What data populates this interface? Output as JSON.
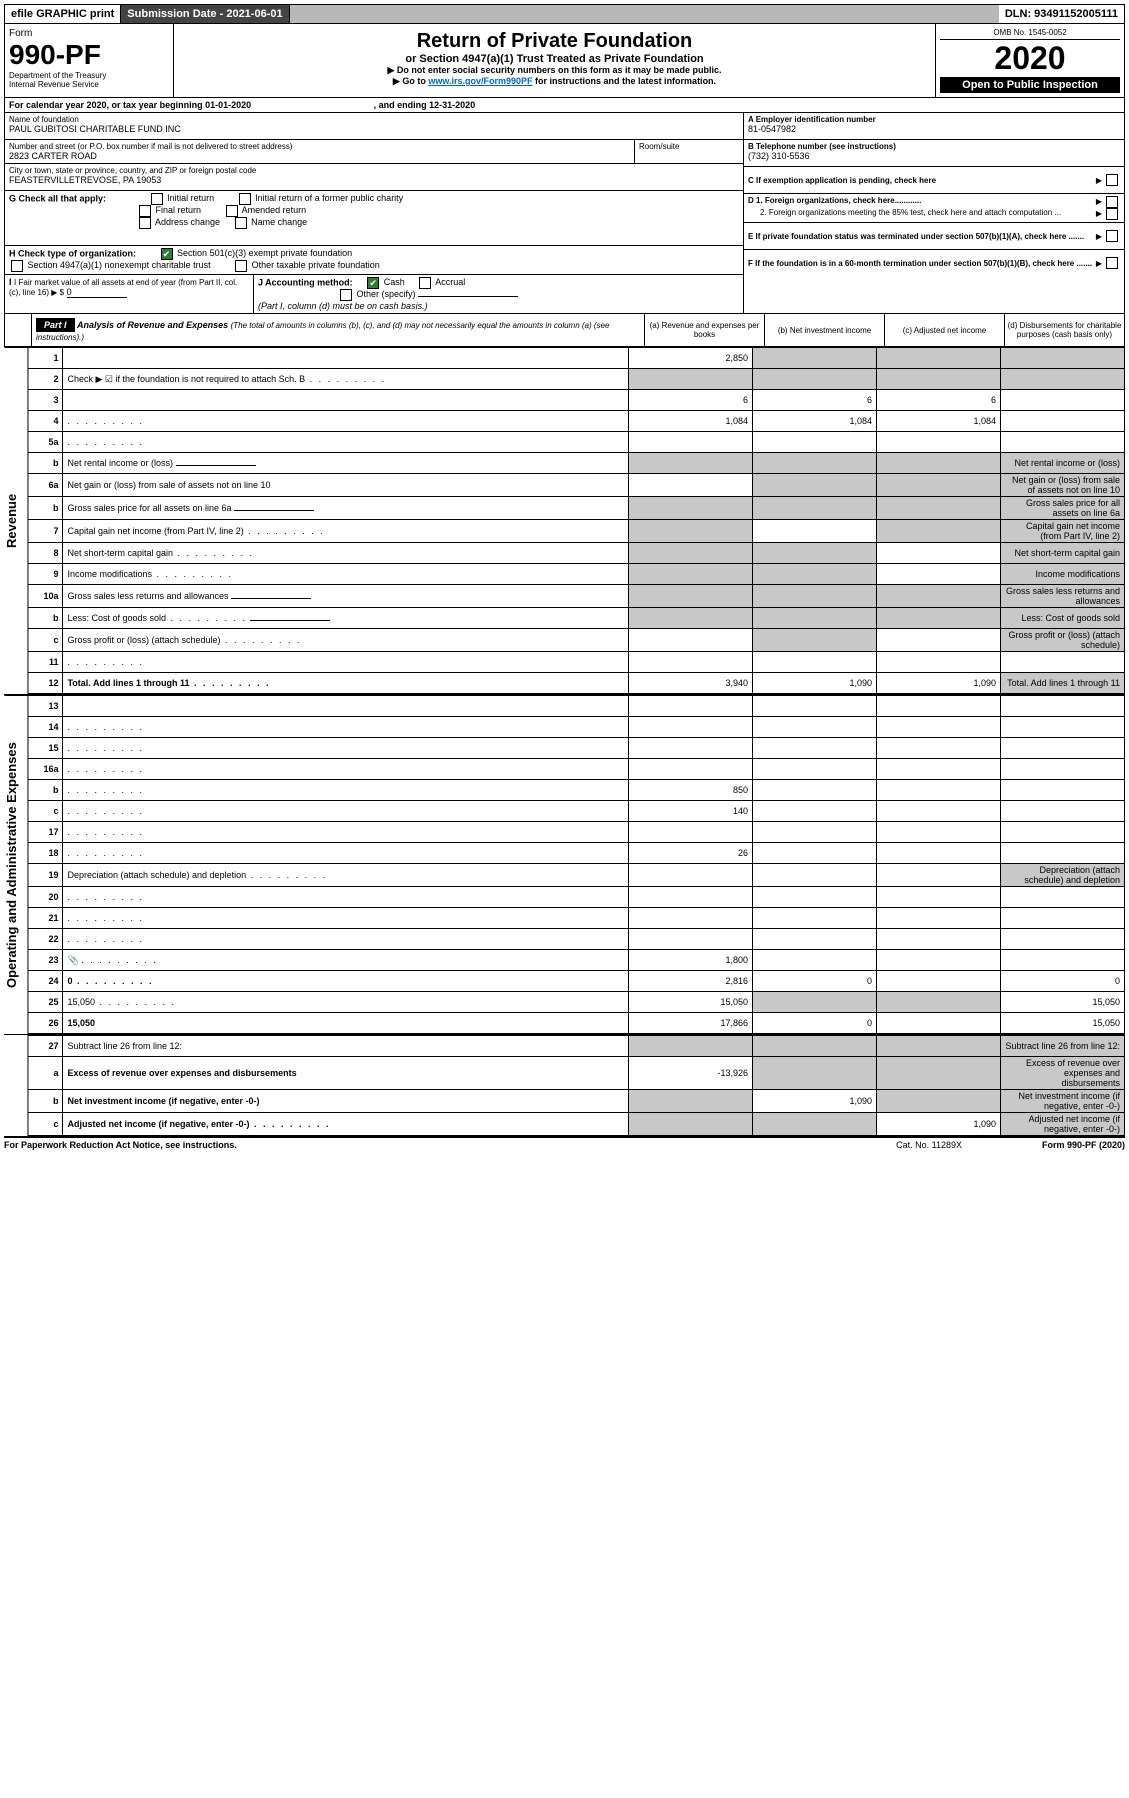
{
  "topbar": {
    "efile": "efile GRAPHIC print",
    "submission_label": "Submission Date - ",
    "submission_date": "2021-06-01",
    "dln_label": "DLN: ",
    "dln": "93491152005111"
  },
  "header": {
    "form_label": "Form",
    "form_no": "990-PF",
    "dept1": "Department of the Treasury",
    "dept2": "Internal Revenue Service",
    "title": "Return of Private Foundation",
    "subtitle": "or Section 4947(a)(1) Trust Treated as Private Foundation",
    "instr1": "▶ Do not enter social security numbers on this form as it may be made public.",
    "instr2_pre": "▶ Go to ",
    "instr2_link": "www.irs.gov/Form990PF",
    "instr2_post": " for instructions and the latest information.",
    "omb": "OMB No. 1545-0052",
    "year": "2020",
    "open": "Open to Public Inspection"
  },
  "calendar": {
    "text_pre": "For calendar year 2020, or tax year beginning ",
    "begin": "01-01-2020",
    "text_mid": " , and ending ",
    "end": "12-31-2020"
  },
  "info": {
    "name_label": "Name of foundation",
    "name": "PAUL GUBITOSI CHARITABLE FUND INC",
    "addr_label": "Number and street (or P.O. box number if mail is not delivered to street address)",
    "addr": "2823 CARTER ROAD",
    "room_label": "Room/suite",
    "city_label": "City or town, state or province, country, and ZIP or foreign postal code",
    "city": "FEASTERVILLETREVOSE, PA  19053",
    "A_label": "A Employer identification number",
    "A_val": "81-0547982",
    "B_label": "B Telephone number (see instructions)",
    "B_val": "(732) 310-5536",
    "C_label": "C If exemption application is pending, check here",
    "D1_label": "D 1. Foreign organizations, check here............",
    "D2_label": "2. Foreign organizations meeting the 85% test, check here and attach computation ...",
    "E_label": "E  If private foundation status was terminated under section 507(b)(1)(A), check here .......",
    "F_label": "F  If the foundation is in a 60-month termination under section 507(b)(1)(B), check here .......",
    "G_label": "G Check all that apply:",
    "G_opts": [
      "Initial return",
      "Initial return of a former public charity",
      "Final return",
      "Amended return",
      "Address change",
      "Name change"
    ],
    "H_label": "H Check type of organization:",
    "H_opt1": "Section 501(c)(3) exempt private foundation",
    "H_opt2": "Section 4947(a)(1) nonexempt charitable trust",
    "H_opt3": "Other taxable private foundation",
    "I_label": "I Fair market value of all assets at end of year (from Part II, col. (c), line 16) ▶ $",
    "I_val": "0",
    "J_label": "J Accounting method:",
    "J_opt1": "Cash",
    "J_opt2": "Accrual",
    "J_other": "Other (specify)",
    "J_note": "(Part I, column (d) must be on cash basis.)"
  },
  "part1": {
    "label": "Part I",
    "title": "Analysis of Revenue and Expenses",
    "title_note": "(The total of amounts in columns (b), (c), and (d) may not necessarily equal the amounts in column (a) (see instructions).)",
    "col_a": "(a)   Revenue and expenses per books",
    "col_b": "(b)   Net investment income",
    "col_c": "(c)   Adjusted net income",
    "col_d": "(d)   Disbursements for charitable purposes (cash basis only)"
  },
  "side_labels": {
    "revenue": "Revenue",
    "expenses": "Operating and Administrative Expenses"
  },
  "rows": [
    {
      "n": "1",
      "d": "",
      "a": "2,850",
      "b": "",
      "c": "",
      "shade_bcd": true
    },
    {
      "n": "2",
      "d": "Check ▶ ☑ if the foundation is not required to attach Sch. B",
      "dots": true,
      "no_vals": true
    },
    {
      "n": "3",
      "d": "",
      "a": "6",
      "b": "6",
      "c": "6"
    },
    {
      "n": "4",
      "d": "",
      "dots": true,
      "a": "1,084",
      "b": "1,084",
      "c": "1,084"
    },
    {
      "n": "5a",
      "d": "",
      "dots": true,
      "a": "",
      "b": "",
      "c": ""
    },
    {
      "n": "b",
      "d": "Net rental income or (loss)",
      "inset": true,
      "shade_all": true
    },
    {
      "n": "6a",
      "d": "Net gain or (loss) from sale of assets not on line 10",
      "a": "",
      "shade_bcd": true
    },
    {
      "n": "b",
      "d": "Gross sales price for all assets on line 6a",
      "inset": true,
      "shade_all": true
    },
    {
      "n": "7",
      "d": "Capital gain net income (from Part IV, line 2)",
      "dots": true,
      "shade_a": true,
      "b": "",
      "shade_cd": true
    },
    {
      "n": "8",
      "d": "Net short-term capital gain",
      "dots": true,
      "shade_ab": true,
      "c": "",
      "shade_d": true
    },
    {
      "n": "9",
      "d": "Income modifications",
      "dots": true,
      "shade_ab": true,
      "c": "",
      "shade_d": true
    },
    {
      "n": "10a",
      "d": "Gross sales less returns and allowances",
      "inset": true,
      "shade_all": true
    },
    {
      "n": "b",
      "d": "Less: Cost of goods sold",
      "dots": true,
      "inset": true,
      "shade_all": true
    },
    {
      "n": "c",
      "d": "Gross profit or (loss) (attach schedule)",
      "dots": true,
      "a": "",
      "shade_b": true,
      "c": "",
      "shade_d": true
    },
    {
      "n": "11",
      "d": "",
      "dots": true,
      "a": "",
      "b": "",
      "c": ""
    },
    {
      "n": "12",
      "d": "Total. Add lines 1 through 11",
      "bold": true,
      "dots": true,
      "a": "3,940",
      "b": "1,090",
      "c": "1,090",
      "shade_d": true
    }
  ],
  "exp_rows": [
    {
      "n": "13",
      "d": "",
      "a": "",
      "b": "",
      "c": ""
    },
    {
      "n": "14",
      "d": "",
      "dots": true,
      "a": "",
      "b": "",
      "c": ""
    },
    {
      "n": "15",
      "d": "",
      "dots": true,
      "a": "",
      "b": "",
      "c": ""
    },
    {
      "n": "16a",
      "d": "",
      "dots": true,
      "a": "",
      "b": "",
      "c": ""
    },
    {
      "n": "b",
      "d": "",
      "dots": true,
      "a": "850",
      "b": "",
      "c": ""
    },
    {
      "n": "c",
      "d": "",
      "dots": true,
      "a": "140",
      "b": "",
      "c": ""
    },
    {
      "n": "17",
      "d": "",
      "dots": true,
      "a": "",
      "b": "",
      "c": ""
    },
    {
      "n": "18",
      "d": "",
      "dots": true,
      "a": "26",
      "b": "",
      "c": ""
    },
    {
      "n": "19",
      "d": "Depreciation (attach schedule) and depletion",
      "dots": true,
      "a": "",
      "b": "",
      "c": "",
      "shade_d": true
    },
    {
      "n": "20",
      "d": "",
      "dots": true,
      "a": "",
      "b": "",
      "c": ""
    },
    {
      "n": "21",
      "d": "",
      "dots": true,
      "a": "",
      "b": "",
      "c": ""
    },
    {
      "n": "22",
      "d": "",
      "dots": true,
      "a": "",
      "b": "",
      "c": ""
    },
    {
      "n": "23",
      "d": "",
      "dots": true,
      "icon": true,
      "a": "1,800",
      "b": "",
      "c": ""
    },
    {
      "n": "24",
      "d": "0",
      "bold": true,
      "dots": true,
      "a": "2,816",
      "b": "0",
      "c": ""
    },
    {
      "n": "25",
      "d": "15,050",
      "dots": true,
      "a": "15,050",
      "shade_bc": true
    },
    {
      "n": "26",
      "d": "15,050",
      "bold": true,
      "a": "17,866",
      "b": "0",
      "c": ""
    }
  ],
  "final_rows": [
    {
      "n": "27",
      "d": "Subtract line 26 from line 12:",
      "shade_all": true
    },
    {
      "n": "a",
      "d": "Excess of revenue over expenses and disbursements",
      "bold": true,
      "a": "-13,926",
      "shade_bcd": true
    },
    {
      "n": "b",
      "d": "Net investment income (if negative, enter -0-)",
      "bold": true,
      "shade_a": true,
      "b": "1,090",
      "shade_cd": true
    },
    {
      "n": "c",
      "d": "Adjusted net income (if negative, enter -0-)",
      "bold": true,
      "dots": true,
      "shade_ab": true,
      "c": "1,090",
      "shade_d": true
    }
  ],
  "footer": {
    "left": "For Paperwork Reduction Act Notice, see instructions.",
    "mid": "Cat. No. 11289X",
    "right": "Form 990-PF (2020)"
  },
  "colors": {
    "shade": "#c8c8c8",
    "link": "#0066cc",
    "check": "#2e7d32"
  }
}
